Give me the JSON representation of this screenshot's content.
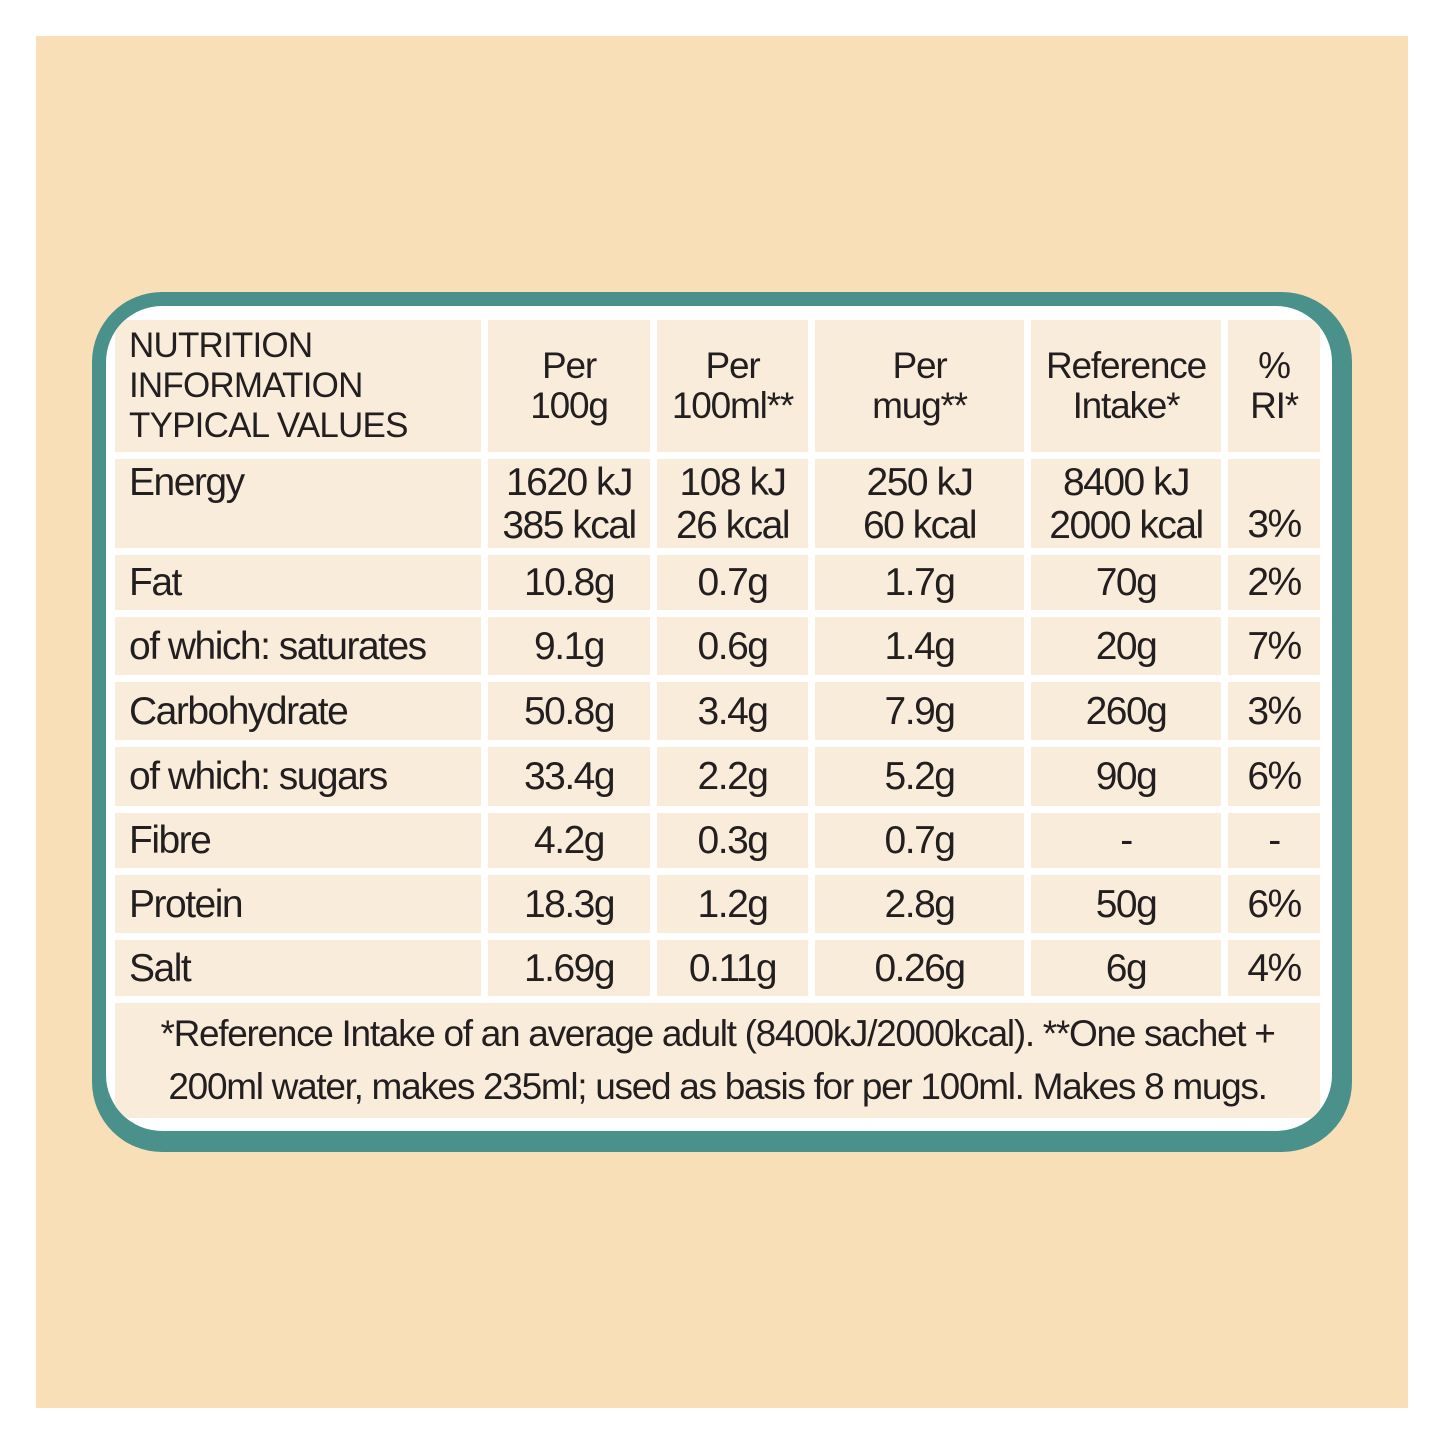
{
  "colors": {
    "background": "#f8dfb7",
    "border": "#4a918b",
    "cell": "#f9ecdb",
    "text": "#231f20"
  },
  "title": [
    "NUTRITION",
    "INFORMATION",
    "TYPICAL VALUES"
  ],
  "headers": [
    [
      "Per",
      "100g"
    ],
    [
      "Per",
      "100ml**"
    ],
    [
      "Per",
      "mug**"
    ],
    [
      "Reference",
      "Intake*"
    ],
    [
      "%",
      "RI*"
    ]
  ],
  "energy": {
    "label": "Energy",
    "values": [
      [
        "1620 kJ",
        "385 kcal"
      ],
      [
        "108 kJ",
        "26 kcal"
      ],
      [
        "250 kJ",
        "60 kcal"
      ],
      [
        "8400 kJ",
        "2000 kcal"
      ]
    ],
    "ri": "3%"
  },
  "rows": [
    {
      "label": "Fat",
      "values": [
        "10.8g",
        "0.7g",
        "1.7g",
        "70g",
        "2%"
      ]
    },
    {
      "label": "of which: saturates",
      "values": [
        "9.1g",
        "0.6g",
        "1.4g",
        "20g",
        "7%"
      ]
    },
    {
      "label": "Carbohydrate",
      "values": [
        "50.8g",
        "3.4g",
        "7.9g",
        "260g",
        "3%"
      ]
    },
    {
      "label": "of which: sugars",
      "values": [
        "33.4g",
        "2.2g",
        "5.2g",
        "90g",
        "6%"
      ]
    },
    {
      "label": "Fibre",
      "values": [
        "4.2g",
        "0.3g",
        "0.7g",
        "-",
        "-"
      ]
    },
    {
      "label": "Protein",
      "values": [
        "18.3g",
        "1.2g",
        "2.8g",
        "50g",
        "6%"
      ]
    },
    {
      "label": "Salt",
      "values": [
        "1.69g",
        "0.11g",
        "0.26g",
        "6g",
        "4%"
      ]
    }
  ],
  "footnote": [
    "*Reference Intake of an average adult (8400kJ/2000kcal). **One sachet +",
    "200ml water, makes 235ml; used as basis for per 100ml. Makes 8 mugs."
  ]
}
